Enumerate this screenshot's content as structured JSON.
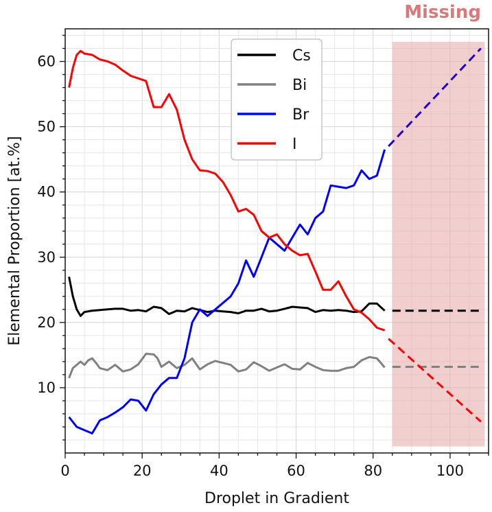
{
  "chart_data": {
    "type": "line",
    "title": "",
    "xlabel": "Droplet in Gradient",
    "ylabel": "Elemental Proportion [at.%]",
    "xlim": [
      0,
      110
    ],
    "ylim": [
      0,
      65
    ],
    "x_ticks": [
      0,
      20,
      40,
      60,
      80,
      100
    ],
    "y_ticks": [
      10,
      20,
      30,
      40,
      50,
      60
    ],
    "grid": "major and minor on",
    "legend_position": "top-center",
    "missing_region": {
      "label": "Missing",
      "x_start": 85,
      "x_end": 109,
      "y_start": 1,
      "y_end": 63,
      "color": "#e8a8a8",
      "label_color": "#d97a7a"
    },
    "series": [
      {
        "name": "Cs",
        "color": "#000000",
        "x": [
          1,
          2,
          3,
          4,
          5,
          7,
          9,
          11,
          13,
          15,
          17,
          19,
          21,
          23,
          25,
          27,
          29,
          31,
          33,
          35,
          37,
          39,
          41,
          43,
          45,
          47,
          49,
          51,
          53,
          55,
          57,
          59,
          61,
          63,
          65,
          67,
          69,
          71,
          73,
          75,
          77,
          79,
          81,
          83
        ],
        "values": [
          27,
          24,
          22,
          21,
          21.6,
          21.8,
          21.9,
          22,
          22.1,
          22.1,
          21.8,
          21.9,
          21.7,
          22.4,
          22.2,
          21.3,
          21.8,
          21.7,
          22.2,
          21.9,
          21.6,
          21.8,
          21.7,
          21.6,
          21.4,
          21.8,
          21.8,
          22.1,
          21.7,
          21.8,
          22.1,
          22.4,
          22.3,
          22.2,
          21.6,
          21.9,
          21.8,
          21.9,
          21.8,
          21.6,
          21.7,
          22.9,
          22.9,
          21.8
        ]
      },
      {
        "name": "Bi",
        "color": "#808080",
        "x": [
          1,
          2,
          3,
          4,
          5,
          6,
          7,
          8,
          9,
          11,
          13,
          15,
          17,
          19,
          21,
          23,
          24,
          25,
          27,
          29,
          31,
          33,
          35,
          37,
          39,
          41,
          43,
          45,
          47,
          49,
          51,
          53,
          55,
          57,
          59,
          61,
          63,
          65,
          67,
          69,
          71,
          73,
          75,
          77,
          79,
          81,
          83
        ],
        "values": [
          11.5,
          13,
          13.5,
          14,
          13.5,
          14.2,
          14.5,
          13.8,
          13,
          12.7,
          13.5,
          12.5,
          12.8,
          13.6,
          15.2,
          15.1,
          14.5,
          13.2,
          14,
          13,
          13.5,
          14.5,
          12.8,
          13.6,
          14.1,
          13.8,
          13.5,
          12.5,
          12.8,
          13.9,
          13.3,
          12.6,
          13.1,
          13.6,
          12.9,
          12.8,
          13.8,
          13.2,
          12.7,
          12.6,
          12.6,
          13,
          13.2,
          14.2,
          14.7,
          14.5,
          13.1
        ]
      },
      {
        "name": "Br",
        "color": "#0000ff",
        "x": [
          1,
          3,
          5,
          7,
          9,
          11,
          13,
          15,
          17,
          19,
          21,
          23,
          25,
          27,
          29,
          31,
          33,
          35,
          37,
          39,
          41,
          43,
          45,
          47,
          49,
          51,
          53,
          55,
          57,
          59,
          61,
          63,
          65,
          67,
          69,
          71,
          73,
          75,
          77,
          79,
          81,
          83
        ],
        "values": [
          5.5,
          4,
          3.5,
          3,
          5,
          5.5,
          6.2,
          7,
          8.2,
          8,
          6.5,
          9,
          10.5,
          11.5,
          11.5,
          14.5,
          20,
          22,
          21,
          22,
          23,
          24,
          26,
          29.5,
          27,
          30,
          33,
          32,
          31,
          33,
          35,
          33.5,
          36,
          37,
          41,
          40.8,
          40.6,
          41,
          43.3,
          42,
          42.5,
          46.5
        ]
      },
      {
        "name": "I",
        "color": "#ff0000",
        "x": [
          1,
          2,
          3,
          4,
          5,
          7,
          9,
          11,
          13,
          15,
          17,
          19,
          21,
          23,
          25,
          27,
          29,
          31,
          33,
          35,
          37,
          39,
          41,
          43,
          45,
          47,
          49,
          51,
          53,
          55,
          57,
          59,
          61,
          63,
          65,
          67,
          69,
          71,
          73,
          75,
          77,
          79,
          81,
          83
        ],
        "values": [
          56,
          59,
          61,
          61.6,
          61.2,
          61,
          60.3,
          60,
          59.5,
          58.6,
          57.8,
          57.4,
          57,
          53,
          53,
          55,
          52.6,
          48,
          45,
          43.3,
          43.2,
          42.8,
          41.5,
          39.5,
          37,
          37.4,
          36.5,
          34,
          33,
          33.5,
          32,
          31,
          30.3,
          30.5,
          27.8,
          25,
          25,
          26.3,
          24,
          22,
          21.5,
          20.5,
          19.2,
          18.8
        ]
      }
    ],
    "extrapolations": [
      {
        "series": "Cs",
        "color": "#000000",
        "x": [
          85,
          108
        ],
        "values": [
          21.8,
          21.8
        ]
      },
      {
        "series": "Bi",
        "color": "#808080",
        "x": [
          85,
          108
        ],
        "values": [
          13.2,
          13.2
        ]
      },
      {
        "series": "Br",
        "color": "#2200cc",
        "x": [
          84,
          108
        ],
        "values": [
          47,
          62
        ]
      },
      {
        "series": "I",
        "color": "#ff0000",
        "x": [
          84,
          108
        ],
        "values": [
          17.5,
          4.8
        ]
      }
    ]
  }
}
